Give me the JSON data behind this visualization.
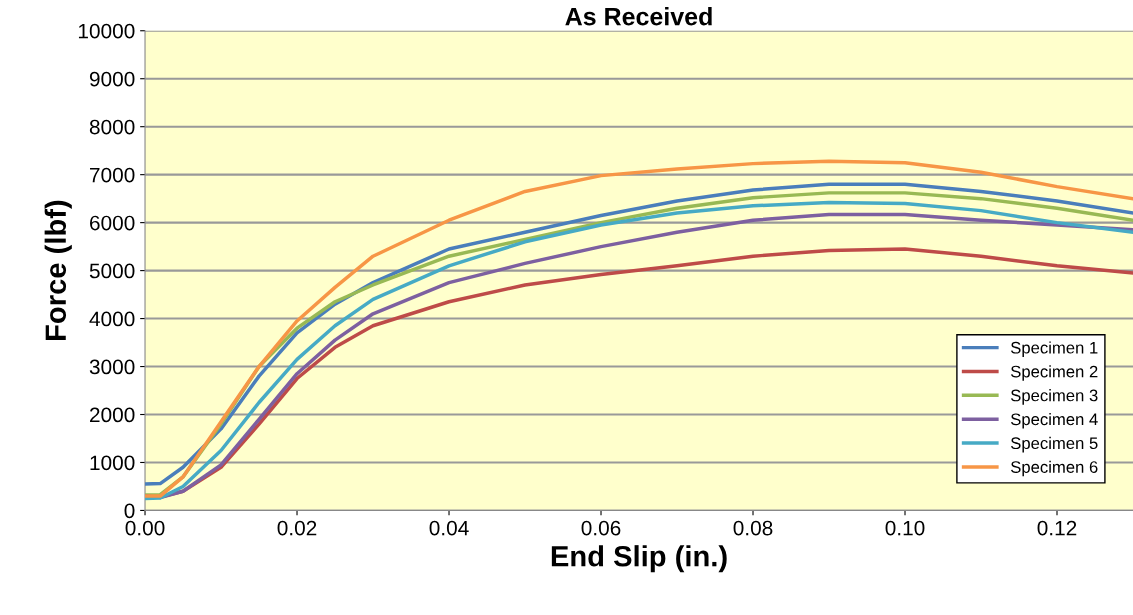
{
  "chart_data": {
    "type": "line",
    "title": "As Received",
    "xlabel": "End Slip (in.)",
    "ylabel": "Force (lbf)",
    "x": [
      0,
      0.002,
      0.005,
      0.01,
      0.015,
      0.02,
      0.025,
      0.03,
      0.04,
      0.05,
      0.06,
      0.07,
      0.08,
      0.09,
      0.1,
      0.11,
      0.12,
      0.13
    ],
    "series": [
      {
        "name": "Specimen 1",
        "color": "#4a7ebb",
        "values": [
          550,
          560,
          900,
          1700,
          2800,
          3700,
          4300,
          4750,
          5450,
          5800,
          6150,
          6450,
          6680,
          6800,
          6800,
          6650,
          6450,
          6200
        ]
      },
      {
        "name": "Specimen 2",
        "color": "#be4b48",
        "values": [
          300,
          280,
          400,
          900,
          1800,
          2750,
          3400,
          3850,
          4350,
          4700,
          4920,
          5100,
          5300,
          5420,
          5450,
          5300,
          5100,
          4950
        ]
      },
      {
        "name": "Specimen 3",
        "color": "#98b954",
        "values": [
          320,
          330,
          700,
          1800,
          3000,
          3800,
          4350,
          4700,
          5300,
          5650,
          6000,
          6300,
          6520,
          6620,
          6620,
          6500,
          6300,
          6050
        ]
      },
      {
        "name": "Specimen 4",
        "color": "#7d60a0",
        "values": [
          300,
          270,
          400,
          950,
          1900,
          2850,
          3550,
          4100,
          4750,
          5150,
          5500,
          5800,
          6050,
          6170,
          6170,
          6050,
          5950,
          5850
        ]
      },
      {
        "name": "Specimen 5",
        "color": "#46aac5",
        "values": [
          250,
          260,
          500,
          1250,
          2250,
          3150,
          3850,
          4400,
          5100,
          5600,
          5950,
          6200,
          6350,
          6420,
          6400,
          6250,
          6000,
          5800
        ]
      },
      {
        "name": "Specimen 6",
        "color": "#f79646",
        "values": [
          300,
          300,
          700,
          1850,
          3000,
          3950,
          4650,
          5300,
          6050,
          6650,
          6980,
          7120,
          7230,
          7280,
          7250,
          7050,
          6750,
          6500
        ]
      }
    ],
    "xlim": [
      0,
      0.13
    ],
    "xticks": [
      {
        "value": 0,
        "label": "0.00"
      },
      {
        "value": 0.02,
        "label": "0.02"
      },
      {
        "value": 0.04,
        "label": "0.04"
      },
      {
        "value": 0.06,
        "label": "0.06"
      },
      {
        "value": 0.08,
        "label": "0.08"
      },
      {
        "value": 0.1,
        "label": "0.10"
      },
      {
        "value": 0.12,
        "label": "0.12"
      }
    ],
    "ylim": [
      0,
      10000
    ],
    "yticks": [
      0,
      1000,
      2000,
      3000,
      4000,
      5000,
      6000,
      7000,
      8000,
      9000,
      10000
    ],
    "grid": "y",
    "legend": "bottom right",
    "marker": "none",
    "line_style": "solid"
  }
}
